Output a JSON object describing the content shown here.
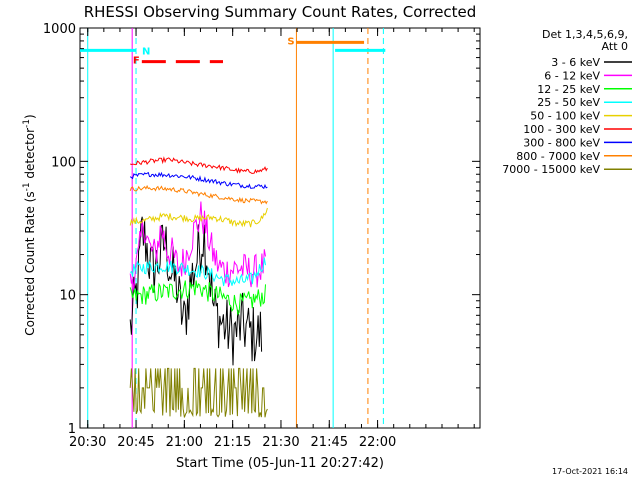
{
  "chart_data": {
    "type": "line",
    "title": "RHESSI Observing Summary Count Rates, Corrected",
    "xlabel": "Start Time (05-Jun-11 20:27:42)",
    "ylabel_main": "Corrected Count Rate (s",
    "ylabel_sup1": "-1",
    "ylabel_mid": " detector",
    "ylabel_sup2": "-1",
    "ylabel_end": ")",
    "yscale": "log",
    "ylim": [
      1,
      1000
    ],
    "xlim_minutes": [
      20.46,
      22.53
    ],
    "x_ticks": [
      {
        "label": "20:30",
        "hour": 20.5
      },
      {
        "label": "20:45",
        "hour": 20.75
      },
      {
        "label": "21:00",
        "hour": 21.0
      },
      {
        "label": "21:15",
        "hour": 21.25
      },
      {
        "label": "21:30",
        "hour": 21.5
      },
      {
        "label": "21:45",
        "hour": 21.75
      },
      {
        "label": "22:00",
        "hour": 22.0
      }
    ],
    "y_ticks": [
      {
        "label": "1",
        "value": 1
      },
      {
        "label": "10",
        "value": 10
      },
      {
        "label": "100",
        "value": 100
      },
      {
        "label": "1000",
        "value": 1000
      }
    ],
    "legend_header": [
      "Det 1,3,4,5,6,9,",
      "Att 0"
    ],
    "legend_position": "top-right",
    "footer_date": "17-Oct-2021 16:14",
    "series": [
      {
        "name": "3 - 6 keV",
        "color": "#000000",
        "data": [
          [
            20.72,
            5.5
          ],
          [
            20.76,
            12
          ],
          [
            20.78,
            30
          ],
          [
            20.8,
            25
          ],
          [
            20.83,
            15
          ],
          [
            20.86,
            17
          ],
          [
            20.9,
            25
          ],
          [
            20.93,
            15
          ],
          [
            20.96,
            12
          ],
          [
            20.98,
            8
          ],
          [
            21.0,
            6
          ],
          [
            21.03,
            12
          ],
          [
            21.07,
            20
          ],
          [
            21.1,
            30
          ],
          [
            21.13,
            15
          ],
          [
            21.15,
            8
          ],
          [
            21.17,
            7
          ],
          [
            21.2,
            6
          ],
          [
            21.25,
            5
          ],
          [
            21.3,
            6
          ],
          [
            21.35,
            5
          ],
          [
            21.4,
            5
          ]
        ]
      },
      {
        "name": "6 - 12 keV",
        "color": "#ff00ff",
        "data": [
          [
            20.72,
            12
          ],
          [
            20.76,
            18
          ],
          [
            20.79,
            35
          ],
          [
            20.82,
            22
          ],
          [
            20.85,
            20
          ],
          [
            20.88,
            32
          ],
          [
            20.91,
            22
          ],
          [
            20.94,
            20
          ],
          [
            20.97,
            16
          ],
          [
            21.0,
            18
          ],
          [
            21.05,
            30
          ],
          [
            21.09,
            40
          ],
          [
            21.12,
            28
          ],
          [
            21.15,
            20
          ],
          [
            21.18,
            16
          ],
          [
            21.22,
            15
          ],
          [
            21.28,
            16
          ],
          [
            21.33,
            15
          ],
          [
            21.38,
            15
          ],
          [
            21.42,
            17
          ]
        ]
      },
      {
        "name": "12 - 25 keV",
        "color": "#00ff00",
        "data": [
          [
            20.72,
            9.5
          ],
          [
            20.8,
            10
          ],
          [
            20.9,
            10.5
          ],
          [
            21.0,
            11
          ],
          [
            21.07,
            11.5
          ],
          [
            21.12,
            10.5
          ],
          [
            21.2,
            9.5
          ],
          [
            21.28,
            8.5
          ],
          [
            21.35,
            9
          ],
          [
            21.42,
            10
          ]
        ]
      },
      {
        "name": "25 - 50 keV",
        "color": "#00ffff",
        "data": [
          [
            20.72,
            15
          ],
          [
            20.78,
            16
          ],
          [
            20.88,
            16.5
          ],
          [
            20.98,
            16
          ],
          [
            21.08,
            15
          ],
          [
            21.15,
            14
          ],
          [
            21.2,
            13
          ],
          [
            21.28,
            12.5
          ],
          [
            21.35,
            13
          ],
          [
            21.42,
            18
          ]
        ]
      },
      {
        "name": "50 - 100 keV",
        "color": "#e8d000",
        "data": [
          [
            20.72,
            35
          ],
          [
            20.8,
            36
          ],
          [
            20.9,
            39
          ],
          [
            20.98,
            38
          ],
          [
            21.05,
            37
          ],
          [
            21.15,
            38
          ],
          [
            21.22,
            36
          ],
          [
            21.28,
            34
          ],
          [
            21.35,
            34
          ],
          [
            21.4,
            37
          ],
          [
            21.43,
            44
          ]
        ]
      },
      {
        "name": "100 - 300 keV",
        "color": "#ff0000",
        "data": [
          [
            20.72,
            95
          ],
          [
            20.82,
            100
          ],
          [
            20.92,
            103
          ],
          [
            21.0,
            98
          ],
          [
            21.08,
            94
          ],
          [
            21.15,
            92
          ],
          [
            21.22,
            88
          ],
          [
            21.3,
            84
          ],
          [
            21.38,
            84
          ],
          [
            21.43,
            88
          ]
        ]
      },
      {
        "name": "300 - 800 keV",
        "color": "#0000ff",
        "data": [
          [
            20.72,
            77
          ],
          [
            20.82,
            80
          ],
          [
            20.92,
            79
          ],
          [
            21.0,
            77
          ],
          [
            21.08,
            74
          ],
          [
            21.15,
            71
          ],
          [
            21.22,
            68
          ],
          [
            21.3,
            66
          ],
          [
            21.38,
            65
          ],
          [
            21.43,
            65
          ]
        ]
      },
      {
        "name": "800 - 7000 keV",
        "color": "#ff8000",
        "data": [
          [
            20.72,
            62
          ],
          [
            20.82,
            63
          ],
          [
            20.92,
            62
          ],
          [
            21.0,
            60
          ],
          [
            21.08,
            57
          ],
          [
            21.15,
            55
          ],
          [
            21.22,
            53
          ],
          [
            21.3,
            51
          ],
          [
            21.38,
            50
          ],
          [
            21.43,
            50
          ]
        ]
      },
      {
        "name": "7000 - 15000 keV",
        "color": "#808000",
        "data": [
          [
            20.72,
            1.5
          ],
          [
            20.8,
            1.8
          ],
          [
            20.85,
            2.5
          ],
          [
            20.9,
            2.2
          ],
          [
            21.0,
            1.6
          ],
          [
            21.1,
            1.9
          ],
          [
            21.2,
            1.7
          ],
          [
            21.3,
            1.8
          ],
          [
            21.43,
            1.7
          ]
        ]
      }
    ],
    "flags": [
      {
        "label": "N",
        "color": "#00ffff",
        "bar_from": 20.46,
        "bar_to": 20.75,
        "value": 680
      },
      {
        "label": "F",
        "color": "#ff0000",
        "bar_from": 20.78,
        "bar_to": 21.2,
        "value": 560,
        "dashed": true
      },
      {
        "label": "S",
        "color": "#ff8000",
        "bar_from": 21.58,
        "bar_to": 21.93,
        "value": 780
      }
    ],
    "vertical_lines": [
      {
        "hour": 20.5,
        "color": "#00ffff",
        "style": "solid"
      },
      {
        "hour": 20.73,
        "color": "#ff00ff",
        "style": "solid"
      },
      {
        "hour": 20.75,
        "color": "#00ffff",
        "style": "dashed"
      },
      {
        "hour": 21.58,
        "color": "#ff8000",
        "style": "solid"
      },
      {
        "hour": 21.77,
        "color": "#00ffff",
        "style": "solid"
      },
      {
        "hour": 21.95,
        "color": "#ff8000",
        "style": "dashed"
      },
      {
        "hour": 22.03,
        "color": "#00ffff",
        "style": "dashed"
      }
    ],
    "extra_bars": [
      {
        "color": "#00ffff",
        "from": 21.78,
        "to": 22.04,
        "value": 680
      }
    ]
  }
}
